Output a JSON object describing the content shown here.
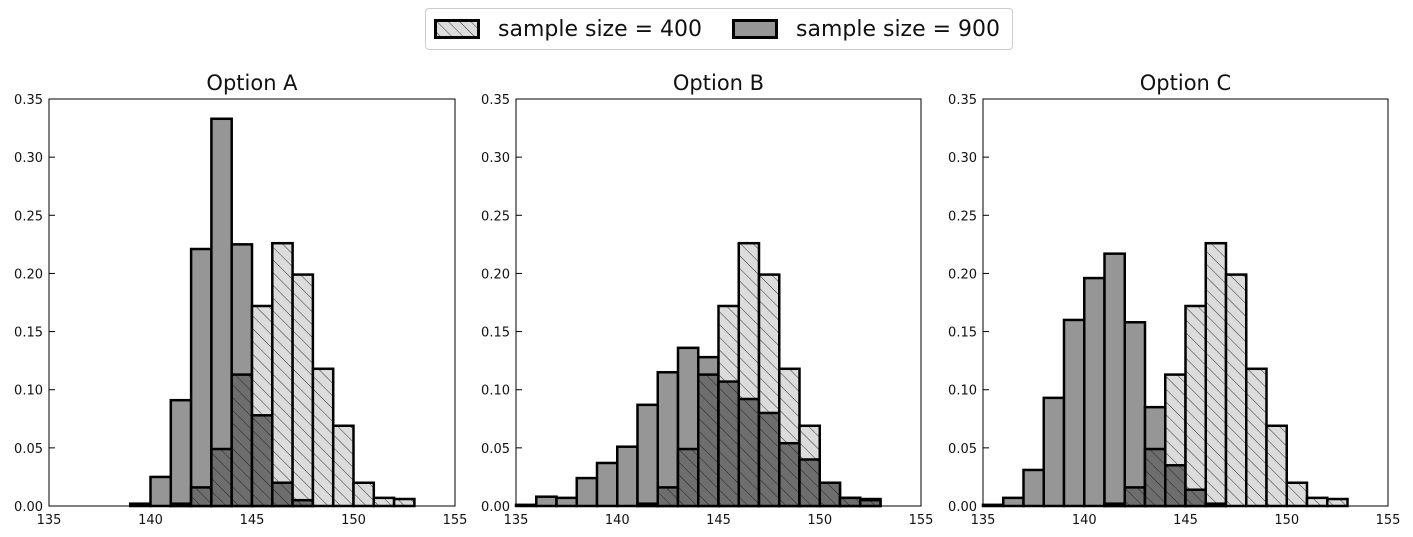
{
  "legend": {
    "series": [
      {
        "name": "sample size = 400",
        "fill": "#dcdcdc",
        "hatch": true
      },
      {
        "name": "sample size = 900",
        "fill": "#969696",
        "hatch": false
      }
    ]
  },
  "colors": {
    "light": "#dcdcdc",
    "dark": "#969696",
    "overlap": "#6e6e6e",
    "edge": "#000000"
  },
  "chart_data": [
    {
      "type": "bar",
      "title": "Option A",
      "xlim": [
        135,
        155
      ],
      "ylim": [
        0,
        0.35
      ],
      "xticks": [
        "135",
        "140",
        "145",
        "150",
        "155"
      ],
      "yticks": [
        "0.00",
        "0.05",
        "0.10",
        "0.15",
        "0.20",
        "0.25",
        "0.30",
        "0.35"
      ],
      "bin_edges": [
        135,
        136,
        137,
        138,
        139,
        140,
        141,
        142,
        143,
        144,
        145,
        146,
        147,
        148,
        149,
        150,
        151,
        152,
        153,
        154
      ],
      "series": [
        {
          "name": "sample size = 400",
          "values": [
            0,
            0,
            0,
            0,
            0,
            0,
            0.002,
            0.016,
            0.049,
            0.113,
            0.172,
            0.226,
            0.199,
            0.118,
            0.069,
            0.02,
            0.007,
            0.006,
            0.0,
            0.0
          ]
        },
        {
          "name": "sample size = 900",
          "values": [
            0,
            0,
            0,
            0,
            0.002,
            0.025,
            0.091,
            0.221,
            0.333,
            0.225,
            0.078,
            0.02,
            0.005,
            0,
            0,
            0,
            0,
            0,
            0,
            0
          ]
        }
      ]
    },
    {
      "type": "bar",
      "title": "Option B",
      "xlim": [
        135,
        155
      ],
      "ylim": [
        0,
        0.35
      ],
      "xticks": [
        "135",
        "140",
        "145",
        "150",
        "155"
      ],
      "yticks": [
        "0.00",
        "0.05",
        "0.10",
        "0.15",
        "0.20",
        "0.25",
        "0.30",
        "0.35"
      ],
      "bin_edges": [
        135,
        136,
        137,
        138,
        139,
        140,
        141,
        142,
        143,
        144,
        145,
        146,
        147,
        148,
        149,
        150,
        151,
        152,
        153,
        154
      ],
      "series": [
        {
          "name": "sample size = 400",
          "values": [
            0,
            0,
            0,
            0,
            0,
            0,
            0.002,
            0.016,
            0.049,
            0.113,
            0.172,
            0.226,
            0.199,
            0.118,
            0.069,
            0.02,
            0.007,
            0.006,
            0.0,
            0.0
          ]
        },
        {
          "name": "sample size = 900",
          "values": [
            0.001,
            0.008,
            0.007,
            0.024,
            0.037,
            0.051,
            0.087,
            0.115,
            0.136,
            0.128,
            0.107,
            0.092,
            0.08,
            0.054,
            0.04,
            0.02,
            0.007,
            0.005,
            0,
            0
          ]
        }
      ]
    },
    {
      "type": "bar",
      "title": "Option C",
      "xlim": [
        135,
        155
      ],
      "ylim": [
        0,
        0.35
      ],
      "xticks": [
        "135",
        "140",
        "145",
        "150",
        "155"
      ],
      "yticks": [
        "0.00",
        "0.05",
        "0.10",
        "0.15",
        "0.20",
        "0.25",
        "0.30",
        "0.35"
      ],
      "bin_edges": [
        135,
        136,
        137,
        138,
        139,
        140,
        141,
        142,
        143,
        144,
        145,
        146,
        147,
        148,
        149,
        150,
        151,
        152,
        153,
        154
      ],
      "series": [
        {
          "name": "sample size = 400",
          "values": [
            0,
            0,
            0,
            0,
            0,
            0,
            0.002,
            0.016,
            0.049,
            0.113,
            0.172,
            0.226,
            0.199,
            0.118,
            0.069,
            0.02,
            0.007,
            0.006,
            0.0,
            0.0
          ]
        },
        {
          "name": "sample size = 900",
          "values": [
            0.001,
            0.007,
            0.031,
            0.093,
            0.16,
            0.196,
            0.217,
            0.158,
            0.085,
            0.035,
            0.014,
            0.002,
            0,
            0,
            0,
            0,
            0,
            0,
            0,
            0
          ]
        }
      ]
    }
  ]
}
